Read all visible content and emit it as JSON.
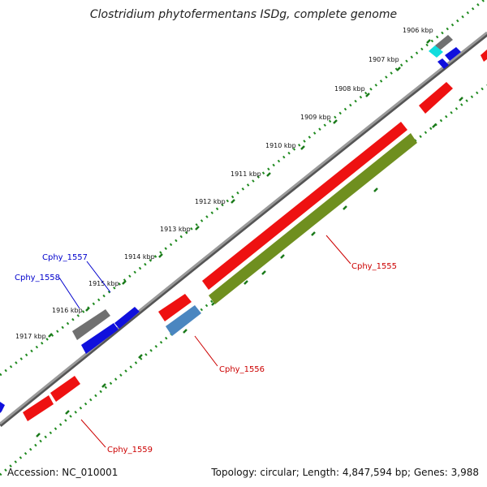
{
  "title": "Clostridium phytofermentans ISDg, complete genome",
  "accession": "Accession: NC_010001",
  "stats": "Topology: circular; Length: 4,847,594 bp; Genes: 3,988",
  "colors": {
    "backbone": "#8a8a8a",
    "dots": "#1f8a1f",
    "tick": "#1a7a1a",
    "red_gene": "#ee1111",
    "blue_gene": "#1010dd",
    "gray_gene": "#707070",
    "cyan_gene": "#11dddd",
    "steel_gene": "#4a86c0",
    "olive_gene": "#6f8f1f",
    "red_label": "#cc0000",
    "blue_label": "#0000cc"
  },
  "kbp_labels": [
    "1906 kbp",
    "1907 kbp",
    "1908 kbp",
    "1909 kbp",
    "1910 kbp",
    "1911 kbp",
    "1912 kbp",
    "1913 kbp",
    "1914 kbp",
    "1915 kbp",
    "1916 kbp",
    "1917 kbp"
  ],
  "gene_labels": {
    "g1555": "Cphy_1555",
    "g1556": "Cphy_1556",
    "g1557": "Cphy_1557",
    "g1558": "Cphy_1558",
    "g1559": "Cphy_1559"
  }
}
